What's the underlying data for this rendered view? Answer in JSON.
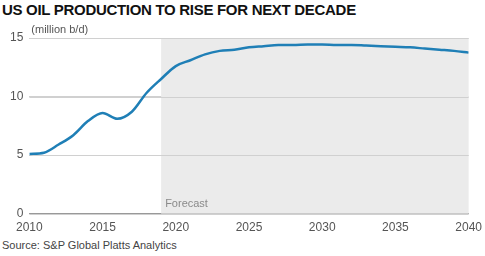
{
  "chart_data": {
    "type": "line",
    "title": "US OIL PRODUCTION TO RISE FOR NEXT DECADE",
    "y_label": "(million b/d)",
    "source": "Source: S&P Global Platts Analytics",
    "x": [
      2010,
      2011,
      2012,
      2013,
      2014,
      2015,
      2016,
      2017,
      2018,
      2019,
      2020,
      2021,
      2022,
      2023,
      2024,
      2025,
      2026,
      2027,
      2028,
      2029,
      2030,
      2031,
      2032,
      2033,
      2034,
      2035,
      2036,
      2037,
      2038,
      2039,
      2040
    ],
    "values": [
      5.1,
      5.2,
      5.9,
      6.7,
      7.9,
      8.6,
      8.1,
      8.7,
      10.3,
      11.5,
      12.6,
      13.1,
      13.6,
      13.9,
      14.0,
      14.2,
      14.3,
      14.4,
      14.4,
      14.45,
      14.45,
      14.4,
      14.4,
      14.35,
      14.3,
      14.25,
      14.2,
      14.1,
      14.0,
      13.9,
      13.75
    ],
    "color": "#1f7fb6",
    "xlim": [
      2010,
      2040
    ],
    "xticks": [
      2010,
      2015,
      2020,
      2025,
      2030,
      2035,
      2040
    ],
    "ylim": [
      0,
      15
    ],
    "yticks": [
      0,
      5,
      10,
      15
    ],
    "grid": true,
    "annotations": [
      {
        "text": "Forecast",
        "x_start": 2019,
        "x_end": 2040
      }
    ]
  }
}
